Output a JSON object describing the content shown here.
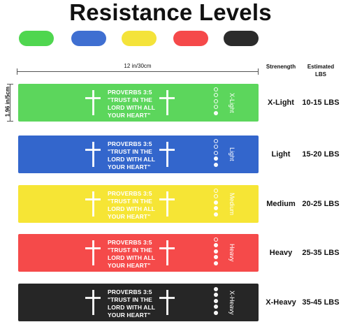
{
  "title": "Resistance Levels",
  "swatches": [
    {
      "color": "#4fd64f"
    },
    {
      "color": "#3f6fd1"
    },
    {
      "color": "#f4e33a"
    },
    {
      "color": "#f5494a"
    },
    {
      "color": "#2b2b2b"
    }
  ],
  "headers": {
    "strength": "Strenength",
    "estimated_line1": "Estimated",
    "estimated_line2": "LBS"
  },
  "dimensions": {
    "length": "12 in/30cm",
    "width": "1.96 in/5cm"
  },
  "verse": {
    "line1": "PROVERBS 3:5",
    "line2": "\"TRUST IN THE",
    "line3": "LORD WITH ALL",
    "line4": "YOUR HEART\""
  },
  "bands": [
    {
      "color": "#5cd65c",
      "label": "X-Light",
      "strength": "X-Light",
      "lbs": "10-15 LBS",
      "filled_dots": 1,
      "icon": "cross-icon"
    },
    {
      "color": "#3366cc",
      "label": "Light",
      "strength": "Light",
      "lbs": "15-20 LBS",
      "filled_dots": 2,
      "icon": "cross-icon"
    },
    {
      "color": "#f6e535",
      "label": "Medium",
      "strength": "Medium",
      "lbs": "20-25 LBS",
      "filled_dots": 3,
      "icon": "cross-icon"
    },
    {
      "color": "#f54a4a",
      "label": "Heavy",
      "strength": "Heavy",
      "lbs": "25-35 LBS",
      "filled_dots": 4,
      "icon": "cross-icon"
    },
    {
      "color": "#262626",
      "label": "X-Heavy",
      "strength": "X-Heavy",
      "lbs": "35-45 LBS",
      "filled_dots": 5,
      "icon": "cross-icon"
    }
  ]
}
